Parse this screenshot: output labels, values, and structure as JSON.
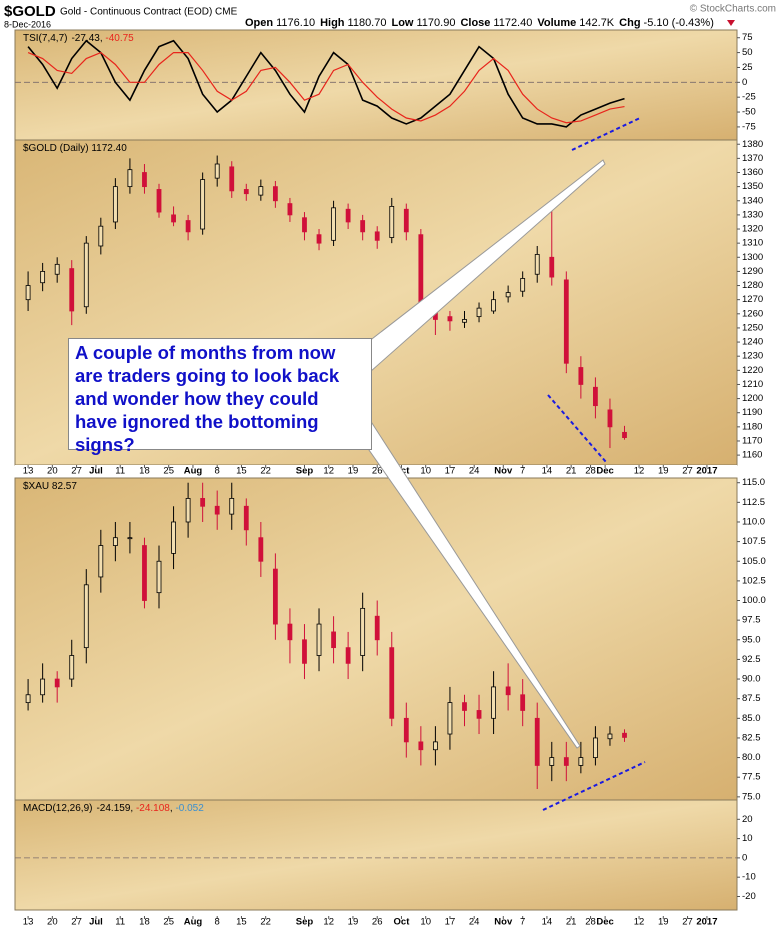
{
  "header": {
    "symbol": "$GOLD",
    "name": "Gold - Continuous Contract (EOD) CME",
    "date": "8-Dec-2016",
    "source": "© StockCharts.com",
    "quote": [
      {
        "label": "Open",
        "value": "1176.10"
      },
      {
        "label": "High",
        "value": "1180.70"
      },
      {
        "label": "Low",
        "value": "1170.90"
      },
      {
        "label": "Close",
        "value": "1172.40"
      },
      {
        "label": "Volume",
        "value": "142.7K"
      },
      {
        "label": "Chg",
        "value": "-5.10 (-0.43%)"
      }
    ]
  },
  "annotation": "A couple of months from now are traders going to look back and wonder how they could have ignored the bottoming signs?",
  "chart_data": [
    {
      "type": "line",
      "title": "TSI(7,4,7)",
      "ylim": [
        -97,
        88
      ],
      "yticks": [
        75,
        50,
        25,
        0,
        -25,
        -50,
        -75
      ],
      "x": [
        0,
        3,
        6,
        9,
        12,
        15,
        18,
        21,
        24,
        27,
        30,
        33,
        36,
        39,
        42,
        45,
        48,
        51,
        54,
        57,
        60,
        63,
        66,
        69,
        72,
        75,
        78,
        81,
        84,
        87,
        90,
        93,
        96,
        99,
        102,
        105,
        108,
        111,
        114,
        117,
        120,
        123
      ],
      "series": [
        {
          "color": "#000000",
          "values": [
            60,
            30,
            -10,
            40,
            70,
            50,
            0,
            -30,
            20,
            60,
            70,
            40,
            -20,
            -50,
            -30,
            10,
            50,
            20,
            -20,
            -50,
            10,
            50,
            30,
            -30,
            -40,
            -60,
            -70,
            -60,
            -40,
            -20,
            20,
            60,
            40,
            -20,
            -60,
            -70,
            -70,
            -75,
            -55,
            -45,
            -35,
            -27.43
          ]
        },
        {
          "color": "#e8251c",
          "values": [
            50,
            40,
            20,
            15,
            40,
            50,
            30,
            0,
            0,
            30,
            50,
            50,
            20,
            -15,
            -30,
            -15,
            20,
            25,
            0,
            -30,
            -20,
            20,
            30,
            0,
            -25,
            -45,
            -60,
            -65,
            -55,
            -40,
            -15,
            20,
            40,
            20,
            -20,
            -45,
            -60,
            -68,
            -65,
            -55,
            -45,
            -40.75
          ]
        }
      ]
    },
    {
      "type": "candlestick",
      "title": "$GOLD (Daily) 1172.40",
      "ylim": [
        1153,
        1383
      ],
      "yticks": [
        1380,
        1370,
        1360,
        1350,
        1340,
        1330,
        1320,
        1310,
        1300,
        1290,
        1280,
        1270,
        1260,
        1250,
        1240,
        1230,
        1220,
        1210,
        1200,
        1190,
        1180,
        1170,
        1160
      ],
      "xlim": [
        -2.7,
        146.2
      ],
      "xticks": [
        {
          "value": 0,
          "label": "13"
        },
        {
          "value": 5,
          "label": "20"
        },
        {
          "value": 10,
          "label": "27"
        },
        {
          "value": 14,
          "label": "Jul"
        },
        {
          "value": 19,
          "label": "11"
        },
        {
          "value": 24,
          "label": "18"
        },
        {
          "value": 29,
          "label": "25"
        },
        {
          "value": 34,
          "label": "Aug"
        },
        {
          "value": 39,
          "label": "8"
        },
        {
          "value": 44,
          "label": "15"
        },
        {
          "value": 49,
          "label": "22"
        },
        {
          "value": 57,
          "label": "Sep"
        },
        {
          "value": 62,
          "label": "12"
        },
        {
          "value": 67,
          "label": "19"
        },
        {
          "value": 72,
          "label": "26"
        },
        {
          "value": 77,
          "label": "Oct"
        },
        {
          "value": 82,
          "label": "10"
        },
        {
          "value": 87,
          "label": "17"
        },
        {
          "value": 92,
          "label": "24"
        },
        {
          "value": 98,
          "label": "Nov"
        },
        {
          "value": 102,
          "label": "7"
        },
        {
          "value": 107,
          "label": "14"
        },
        {
          "value": 112,
          "label": "21"
        },
        {
          "value": 116,
          "label": "28"
        },
        {
          "value": 119,
          "label": "Dec"
        },
        {
          "value": 126,
          "label": "12"
        },
        {
          "value": 131,
          "label": "19"
        },
        {
          "value": 136,
          "label": "27"
        },
        {
          "value": 140,
          "label": "2017"
        }
      ],
      "x": [
        0,
        3,
        6,
        9,
        12,
        15,
        18,
        21,
        24,
        27,
        30,
        33,
        36,
        39,
        42,
        45,
        48,
        51,
        54,
        57,
        60,
        63,
        66,
        69,
        72,
        75,
        78,
        81,
        84,
        87,
        90,
        93,
        96,
        99,
        102,
        105,
        108,
        111,
        114,
        117,
        120,
        123
      ],
      "open": [
        1270,
        1282,
        1288,
        1292,
        1265,
        1308,
        1325,
        1350,
        1360,
        1348,
        1330,
        1326,
        1320,
        1356,
        1364,
        1348,
        1344,
        1350,
        1338,
        1328,
        1316,
        1312,
        1334,
        1326,
        1318,
        1314,
        1334,
        1316,
        1266,
        1258,
        1254,
        1258,
        1262,
        1272,
        1276,
        1288,
        1300,
        1284,
        1222,
        1208,
        1192,
        1176.1
      ],
      "high": [
        1290,
        1296,
        1300,
        1298,
        1315,
        1328,
        1356,
        1370,
        1366,
        1352,
        1336,
        1330,
        1360,
        1372,
        1368,
        1352,
        1355,
        1354,
        1342,
        1332,
        1320,
        1340,
        1338,
        1330,
        1322,
        1342,
        1338,
        1320,
        1270,
        1262,
        1262,
        1268,
        1276,
        1280,
        1290,
        1308,
        1338,
        1290,
        1230,
        1215,
        1200,
        1180.7
      ],
      "low": [
        1262,
        1276,
        1282,
        1252,
        1260,
        1302,
        1320,
        1345,
        1345,
        1328,
        1322,
        1312,
        1316,
        1350,
        1342,
        1340,
        1340,
        1335,
        1325,
        1312,
        1305,
        1308,
        1320,
        1312,
        1306,
        1310,
        1312,
        1262,
        1245,
        1248,
        1250,
        1254,
        1260,
        1268,
        1272,
        1282,
        1280,
        1218,
        1200,
        1186,
        1165,
        1170.9
      ],
      "close": [
        1280,
        1290,
        1295,
        1262,
        1310,
        1322,
        1350,
        1362,
        1350,
        1332,
        1325,
        1318,
        1355,
        1366,
        1347,
        1345,
        1350,
        1340,
        1330,
        1318,
        1310,
        1335,
        1325,
        1318,
        1312,
        1336,
        1318,
        1268,
        1256,
        1255,
        1256,
        1264,
        1270,
        1275,
        1285,
        1302,
        1286,
        1225,
        1210,
        1195,
        1180,
        1172.4
      ]
    },
    {
      "type": "candlestick",
      "title": "$XAU 82.57",
      "ylim": [
        74.6,
        115.6
      ],
      "yticks": [
        {
          "value": 115,
          "label": "115.0"
        },
        112.5,
        {
          "value": 110,
          "label": "110.0"
        },
        107.5,
        {
          "value": 105,
          "label": "105.0"
        },
        102.5,
        {
          "value": 100,
          "label": "100.0"
        },
        97.5,
        {
          "value": 95,
          "label": "95.0"
        },
        92.5,
        {
          "value": 90,
          "label": "90.0"
        },
        87.5,
        {
          "value": 85,
          "label": "85.0"
        },
        82.5,
        {
          "value": 80,
          "label": "80.0"
        },
        77.5,
        {
          "value": 75,
          "label": "75.0"
        }
      ],
      "x": [
        0,
        3,
        6,
        9,
        12,
        15,
        18,
        21,
        24,
        27,
        30,
        33,
        36,
        39,
        42,
        45,
        48,
        51,
        54,
        57,
        60,
        63,
        66,
        69,
        72,
        75,
        78,
        81,
        84,
        87,
        90,
        93,
        96,
        99,
        102,
        105,
        108,
        111,
        114,
        117,
        120,
        123
      ],
      "open": [
        87,
        88,
        90,
        90,
        94,
        103,
        107,
        108,
        107,
        101,
        106,
        110,
        113,
        112,
        111,
        112,
        108,
        104,
        97,
        95,
        93,
        96,
        94,
        93,
        98,
        94,
        85,
        82,
        81,
        83,
        87,
        86,
        85,
        89,
        88,
        85,
        79,
        80,
        79,
        80,
        82.4,
        83.1
      ],
      "high": [
        90,
        92,
        91,
        95,
        104,
        109,
        110,
        110,
        108,
        107,
        112,
        115,
        115,
        114,
        115,
        113,
        110,
        106,
        99,
        97,
        99,
        98,
        96,
        101,
        100,
        96,
        87,
        84,
        84,
        89,
        88,
        88,
        91,
        92,
        90,
        87,
        82,
        82,
        82,
        84,
        84,
        83.6
      ],
      "low": [
        86,
        87,
        87,
        89,
        92,
        101,
        105,
        106,
        99,
        99,
        104,
        108,
        110,
        109,
        109,
        107,
        103,
        95,
        92,
        90,
        91,
        92,
        90,
        91,
        93,
        84,
        80,
        79,
        79,
        81,
        84,
        83,
        83,
        86,
        84,
        76,
        77,
        77,
        78,
        79,
        81.5,
        82
      ],
      "close": [
        88,
        90,
        89,
        93,
        102,
        107,
        108,
        108,
        100,
        105,
        110,
        113,
        112,
        111,
        113,
        109,
        105,
        97,
        95,
        92,
        97,
        94,
        92,
        99,
        95,
        85,
        82,
        81,
        82,
        87,
        86,
        85,
        89,
        88,
        86,
        79,
        80,
        79,
        80,
        82.5,
        83,
        82.57
      ]
    },
    {
      "type": "macd",
      "title": "MACD(12,26,9)",
      "legend": [
        {
          "label": "-24.159",
          "color": "#000000"
        },
        {
          "label": "-24.108",
          "color": "#e8251c"
        },
        {
          "label": "-0.052",
          "color": "#3a8fd0"
        }
      ],
      "ylim": [
        -27,
        30
      ],
      "yticks": [
        20,
        10,
        0,
        -10,
        -20
      ]
    }
  ]
}
